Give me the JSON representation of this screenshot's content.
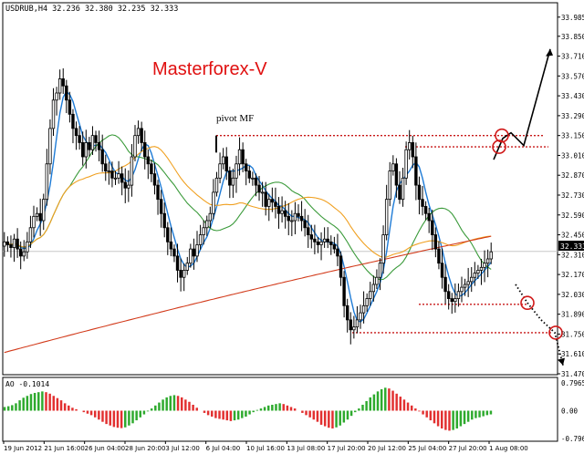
{
  "header": {
    "symbol_line": "USDRUB,H4  32.236 32.380 32.235 32.333"
  },
  "watermark": {
    "text": "Masterforex-V",
    "color": "#e01010"
  },
  "annotation": {
    "pivot_label": "pivot MF"
  },
  "colors": {
    "background": "#ffffff",
    "candle": "#000000",
    "ma_fast": "#1e7bd6",
    "ma_mid": "#3a9a3a",
    "ma_slow": "#f0a020",
    "ma_long": "#d23a1a",
    "level_lines": "#c81818",
    "circles": "#d01818",
    "arrows": "#000000",
    "ao_up": "#2eaa2e",
    "ao_down": "#e23030",
    "price_tag_bg": "#000000",
    "price_tag_text": "#ffffff"
  },
  "chart_data": [
    {
      "type": "candlestick",
      "title": "USDRUB,H4",
      "ylim": [
        31.47,
        33.99
      ],
      "price_axis_ticks": [
        "33.985",
        "33.850",
        "33.710",
        "33.570",
        "33.430",
        "33.290",
        "33.150",
        "33.010",
        "32.870",
        "32.730",
        "32.590",
        "32.450",
        "32.310",
        "32.170",
        "32.030",
        "31.890",
        "31.750",
        "31.610",
        "31.470"
      ],
      "current_price": "32.333",
      "time_axis_ticks": [
        "19 Jun 2012",
        "21 Jun 16:00",
        "26 Jun 04:00",
        "28 Jun 20:00",
        "3 Jul 12:00",
        "6 Jul 04:00",
        "10 Jul 16:00",
        "13 Jul 08:00",
        "17 Jul 20:00",
        "20 Jul 12:00",
        "25 Jul 04:00",
        "27 Jul 20:00",
        "1 Aug 08:00"
      ],
      "close_series": [
        32.4,
        32.38,
        32.36,
        32.42,
        32.35,
        32.3,
        32.33,
        32.4,
        32.5,
        32.58,
        32.6,
        32.55,
        32.7,
        32.95,
        33.2,
        33.4,
        33.45,
        33.55,
        33.5,
        33.4,
        33.3,
        33.2,
        33.15,
        33.1,
        33.0,
        33.1,
        33.05,
        33.15,
        33.1,
        33.05,
        32.95,
        32.9,
        32.9,
        32.85,
        32.85,
        32.88,
        32.82,
        32.78,
        32.8,
        33.0,
        33.15,
        33.2,
        33.1,
        33.0,
        32.95,
        32.88,
        32.8,
        32.7,
        32.6,
        32.5,
        32.4,
        32.35,
        32.3,
        32.2,
        32.15,
        32.2,
        32.25,
        32.35,
        32.3,
        32.38,
        32.45,
        32.5,
        32.55,
        32.6,
        32.75,
        32.85,
        32.95,
        33.0,
        32.9,
        32.8,
        32.85,
        32.95,
        33.05,
        32.95,
        32.9,
        32.85,
        32.85,
        32.8,
        32.75,
        32.75,
        32.65,
        32.7,
        32.68,
        32.65,
        32.6,
        32.62,
        32.58,
        32.55,
        32.55,
        32.6,
        32.58,
        32.55,
        32.5,
        32.45,
        32.42,
        32.4,
        32.38,
        32.4,
        32.42,
        32.4,
        32.38,
        32.35,
        32.3,
        32.15,
        31.95,
        31.85,
        31.78,
        31.8,
        31.85,
        31.9,
        31.95,
        32.0,
        32.05,
        32.1,
        32.15,
        32.25,
        32.45,
        32.7,
        32.9,
        32.95,
        32.8,
        32.7,
        32.85,
        33.05,
        33.1,
        33.0,
        32.8,
        32.7,
        32.65,
        32.6,
        32.55,
        32.45,
        32.35,
        32.25,
        32.15,
        32.05,
        32.0,
        31.98,
        32.0,
        32.05,
        32.08,
        32.1,
        32.12,
        32.15,
        32.18,
        32.2,
        32.22,
        32.25,
        32.28,
        32.33
      ],
      "moving_averages": [
        {
          "name": "fast",
          "period": 5
        },
        {
          "name": "mid",
          "period": 21
        },
        {
          "name": "slow",
          "period": 34
        },
        {
          "name": "long",
          "period": 200
        }
      ],
      "levels": [
        {
          "name": "pivot",
          "value": 33.15
        },
        {
          "name": "resistance",
          "value": 33.07
        },
        {
          "name": "support-1",
          "value": 31.96
        },
        {
          "name": "support-2",
          "value": 31.76
        }
      ],
      "projection_up": [
        [
          32.98,
          0
        ],
        [
          33.13,
          1
        ],
        [
          33.17,
          2
        ],
        [
          33.08,
          3
        ],
        [
          33.76,
          4
        ]
      ],
      "projection_down": [
        [
          32.1,
          0
        ],
        [
          31.97,
          1
        ],
        [
          31.85,
          2
        ],
        [
          31.76,
          3
        ],
        [
          31.53,
          4
        ]
      ]
    },
    {
      "type": "bar",
      "title": "AO -0.1014",
      "ylim": [
        -0.8,
        0.8
      ],
      "y_ticks": [
        "0.7965",
        "0.00",
        "-0.7965"
      ],
      "histogram": [
        0.1,
        0.12,
        0.15,
        0.2,
        0.28,
        0.35,
        0.4,
        0.45,
        0.48,
        0.5,
        0.52,
        0.5,
        0.46,
        0.4,
        0.34,
        0.28,
        0.2,
        0.14,
        0.08,
        0.04,
        0.0,
        -0.04,
        -0.08,
        -0.12,
        -0.18,
        -0.24,
        -0.3,
        -0.36,
        -0.4,
        -0.44,
        -0.46,
        -0.47,
        -0.45,
        -0.4,
        -0.34,
        -0.26,
        -0.18,
        -0.1,
        -0.02,
        0.06,
        0.14,
        0.22,
        0.3,
        0.36,
        0.4,
        0.42,
        0.4,
        0.36,
        0.3,
        0.24,
        0.16,
        0.08,
        0.0,
        -0.06,
        -0.12,
        -0.16,
        -0.2,
        -0.22,
        -0.24,
        -0.26,
        -0.28,
        -0.26,
        -0.24,
        -0.2,
        -0.16,
        -0.1,
        -0.04,
        0.02,
        0.06,
        0.1,
        0.14,
        0.16,
        0.18,
        0.2,
        0.18,
        0.14,
        0.1,
        0.06,
        0.0,
        -0.06,
        -0.12,
        -0.18,
        -0.24,
        -0.3,
        -0.38,
        -0.42,
        -0.46,
        -0.48,
        -0.45,
        -0.4,
        -0.32,
        -0.24,
        -0.14,
        -0.04,
        0.06,
        0.16,
        0.26,
        0.36,
        0.44,
        0.52,
        0.58,
        0.62,
        0.6,
        0.54,
        0.46,
        0.38,
        0.3,
        0.22,
        0.14,
        0.06,
        -0.02,
        -0.1,
        -0.18,
        -0.26,
        -0.34,
        -0.42,
        -0.48,
        -0.52,
        -0.54,
        -0.52,
        -0.48,
        -0.42,
        -0.36,
        -0.3,
        -0.24,
        -0.2,
        -0.18,
        -0.15,
        -0.12,
        -0.1
      ]
    }
  ]
}
